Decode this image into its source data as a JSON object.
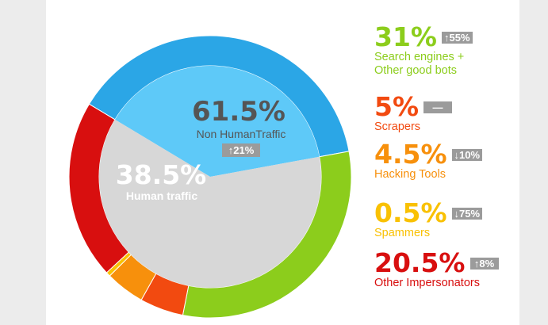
{
  "colors": {
    "background": "#ececec",
    "card": "#ffffff",
    "human": "#2ba6e6",
    "human_inner": "#5ec9f8",
    "non_human_inner": "#d7d7d7",
    "badge": "#9b9b9b"
  },
  "center": {
    "non_human": {
      "value": "61.5%",
      "label": "Non HumanTraffic",
      "change": "↑21%"
    },
    "human": {
      "value": "38.5%",
      "label": "Human traffic"
    }
  },
  "chart_data": {
    "type": "pie",
    "variant": "donut",
    "title": "",
    "outer_ring": [
      {
        "name": "Human traffic",
        "value": 38.5,
        "color": "#2ba6e6"
      },
      {
        "name": "Search engines + Other good bots",
        "value": 31,
        "color": "#8ccd1c"
      },
      {
        "name": "Scrapers",
        "value": 5,
        "color": "#f24a10"
      },
      {
        "name": "Hacking Tools",
        "value": 4.5,
        "color": "#f7900c"
      },
      {
        "name": "Spammers",
        "value": 0.5,
        "color": "#f9c103"
      },
      {
        "name": "Other Impersonators",
        "value": 20.5,
        "color": "#d80f0f"
      }
    ],
    "inner_disc": [
      {
        "name": "Human traffic",
        "value": 38.5,
        "color": "#5ec9f8"
      },
      {
        "name": "Non HumanTraffic",
        "value": 61.5,
        "color": "#d7d7d7"
      }
    ],
    "legend": [
      {
        "value": "31%",
        "change": "↑55%",
        "label_lines": [
          "Search engines +",
          "Other good bots"
        ],
        "color": "#8ccd1c"
      },
      {
        "value": "5%",
        "change": "—",
        "label_lines": [
          "Scrapers"
        ],
        "color": "#f24a10"
      },
      {
        "value": "4.5%",
        "change": "↓10%",
        "label_lines": [
          "Hacking Tools"
        ],
        "color": "#f7900c"
      },
      {
        "value": "0.5%",
        "change": "↓75%",
        "label_lines": [
          "Spammers"
        ],
        "color": "#f9c103"
      },
      {
        "value": "20.5%",
        "change": "↑8%",
        "label_lines": [
          "Other Impersonators"
        ],
        "color": "#d80f0f"
      }
    ],
    "legend_position": "right"
  }
}
